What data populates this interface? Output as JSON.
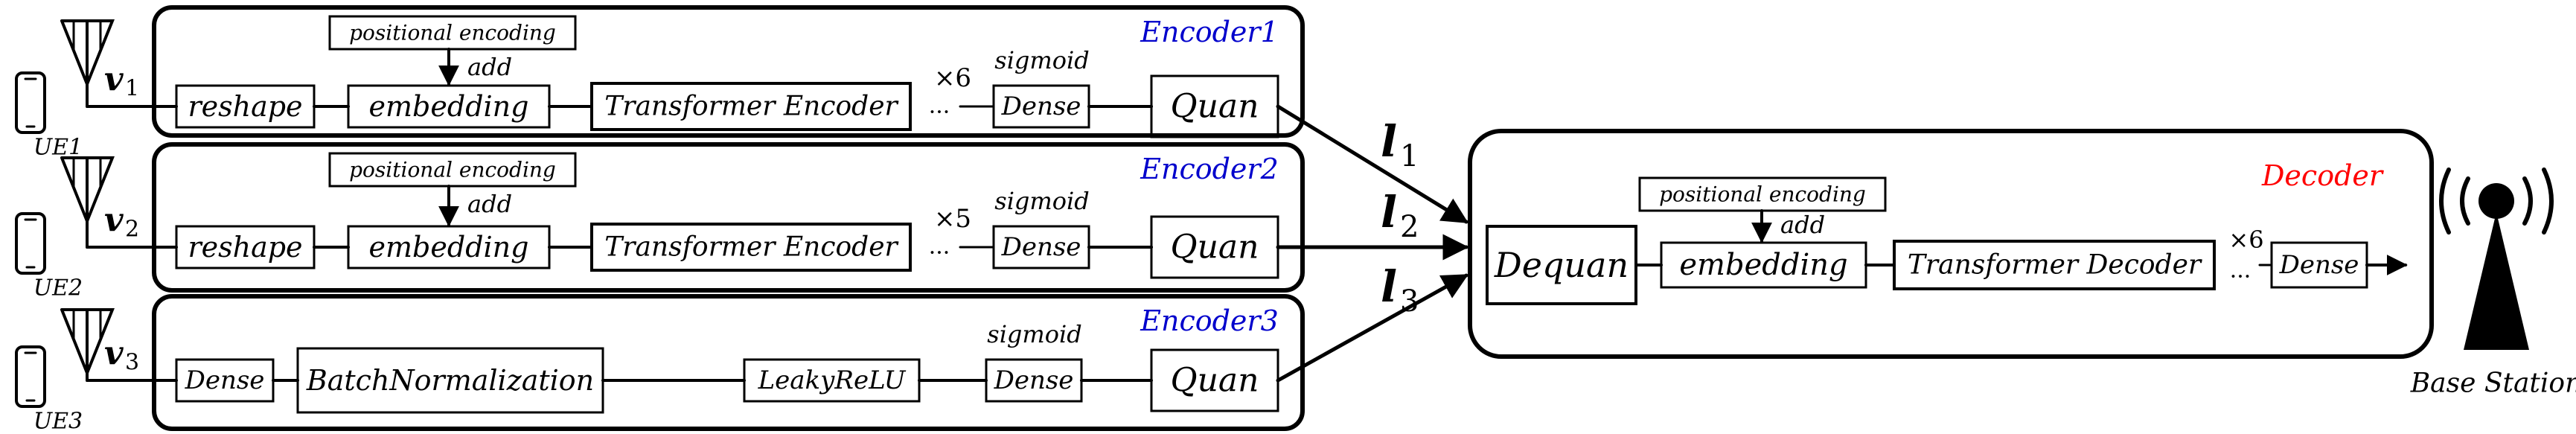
{
  "encoders": [
    {
      "title": "Encoder1",
      "ue": "UE1",
      "v_sym": "v",
      "v_sub": "1",
      "pos_enc": "positional encoding",
      "add": "add",
      "blocks": [
        "reshape",
        "embedding",
        "Transformer Encoder",
        "Dense",
        "Quan"
      ],
      "repeat": "×6",
      "dots": "···",
      "activation": "sigmoid"
    },
    {
      "title": "Encoder2",
      "ue": "UE2",
      "v_sym": "v",
      "v_sub": "2",
      "pos_enc": "positional encoding",
      "add": "add",
      "blocks": [
        "reshape",
        "embedding",
        "Transformer Encoder",
        "Dense",
        "Quan"
      ],
      "repeat": "×5",
      "dots": "···",
      "activation": "sigmoid"
    },
    {
      "title": "Encoder3",
      "ue": "UE3",
      "v_sym": "v",
      "v_sub": "3",
      "blocks": [
        "Dense",
        "BatchNormalization",
        "LeakyReLU",
        "Dense",
        "Quan"
      ],
      "activation": "sigmoid"
    }
  ],
  "links": [
    {
      "sym": "l",
      "sub": "1"
    },
    {
      "sym": "l",
      "sub": "2"
    },
    {
      "sym": "l",
      "sub": "3"
    }
  ],
  "decoder": {
    "title": "Decoder",
    "pos_enc": "positional encoding",
    "add": "add",
    "blocks": [
      "Dequan",
      "embedding",
      "Transformer Decoder",
      "Dense"
    ],
    "repeat": "×6",
    "dots": "···"
  },
  "base_station": "Base Station",
  "colors": {
    "encoder_title": "#0000cc",
    "decoder_title": "#ff0000",
    "line": "#000000"
  },
  "icons": [
    "phone-icon",
    "antenna-icon",
    "base-station-tower-icon"
  ]
}
